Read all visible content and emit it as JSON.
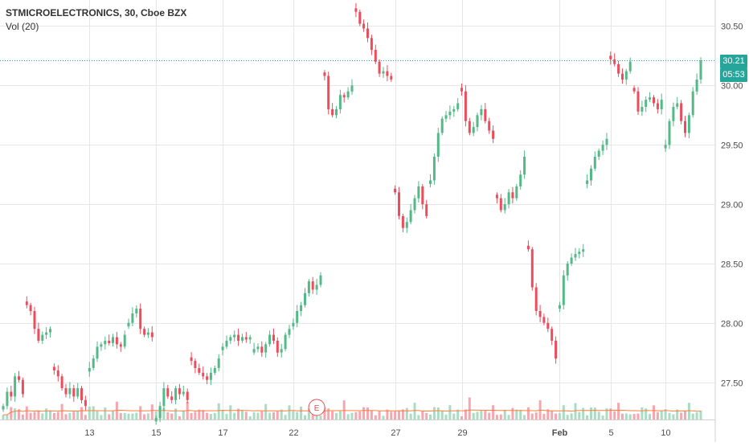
{
  "legend": {
    "title": "STMICROELECTRONICS, 30, Cboe BZX",
    "volume": "Vol (20)"
  },
  "colors": {
    "up": "#53b987",
    "down": "#eb4d5c",
    "up_volume": "#a9dcc3",
    "down_volume": "#f5a6ae",
    "volume_ma": "#ff7f3f",
    "grid": "#e6e6e6",
    "last_price_line": "#26a69a",
    "countdown_bg": "#26a69a",
    "earnings": "#e04f4f"
  },
  "price_axis": {
    "ticks": [
      "30.50",
      "30.00",
      "29.50",
      "29.00",
      "28.50",
      "28.00",
      "27.50"
    ],
    "range": [
      27.2,
      30.72
    ]
  },
  "time_axis": {
    "ticks": [
      "13",
      "15",
      "17",
      "22",
      "27",
      "29",
      "Feb",
      "5",
      "10"
    ]
  },
  "last_price": {
    "value": "30.21",
    "countdown": "05:53"
  },
  "earnings_marker": {
    "label": "E"
  },
  "chart_data": {
    "type": "candlestick",
    "symbol": "STMICROELECTRONICS",
    "interval": "30",
    "exchange": "Cboe BZX",
    "ylim": [
      27.2,
      30.72
    ],
    "sessions": [
      {
        "label": "",
        "path": [
          27.3,
          27.42,
          27.38,
          27.55,
          27.52,
          27.4
        ]
      },
      {
        "label": "",
        "path": [
          28.15,
          28.1,
          27.95,
          27.85,
          27.9,
          27.92,
          27.95
        ]
      },
      {
        "label": "",
        "path": [
          27.6,
          27.55,
          27.45,
          27.4,
          27.45,
          27.38,
          27.45,
          27.35,
          27.3
        ]
      },
      {
        "label": "13",
        "path": [
          27.62,
          27.7,
          27.8,
          27.82,
          27.85,
          27.83,
          27.88,
          27.82,
          27.8,
          27.9
        ]
      },
      {
        "label": "",
        "path": [
          28.0,
          28.08,
          28.12,
          27.95,
          27.9,
          27.92,
          27.88
        ]
      },
      {
        "label": "15",
        "path": [
          27.2,
          27.3,
          27.45,
          27.38,
          27.35,
          27.45,
          27.4,
          27.42,
          27.35
        ]
      },
      {
        "label": "",
        "path": [
          27.68,
          27.62,
          27.58,
          27.55,
          27.52,
          27.58,
          27.62,
          27.7
        ]
      },
      {
        "label": "17",
        "path": [
          27.8,
          27.85,
          27.88,
          27.9,
          27.85,
          27.88,
          27.86,
          27.88
        ]
      },
      {
        "label": "",
        "path": [
          27.78,
          27.8,
          27.75,
          27.82,
          27.9,
          27.85,
          27.75,
          27.78,
          27.9,
          27.95
        ]
      },
      {
        "label": "22",
        "path": [
          28.0,
          28.1,
          28.15,
          28.25,
          28.35,
          28.28,
          28.32,
          28.4
        ]
      },
      {
        "label": "",
        "path": [
          30.08,
          29.8,
          29.75,
          29.8,
          29.92,
          29.9,
          29.95,
          30.0
        ]
      },
      {
        "label": "",
        "path": [
          30.62,
          30.52,
          30.48,
          30.4,
          30.3,
          30.2,
          30.1,
          30.12,
          30.08,
          30.05
        ]
      },
      {
        "label": "27",
        "path": [
          29.1,
          28.9,
          28.8,
          28.85,
          28.95,
          29.05,
          29.15,
          29.0,
          28.9
        ]
      },
      {
        "label": "",
        "path": [
          29.2,
          29.4,
          29.6,
          29.72,
          29.75,
          29.78,
          29.8,
          29.85
        ]
      },
      {
        "label": "29",
        "path": [
          29.95,
          29.7,
          29.6,
          29.65,
          29.75,
          29.8,
          29.7,
          29.62,
          29.55
        ]
      },
      {
        "label": "",
        "path": [
          29.05,
          28.95,
          29.0,
          29.1,
          29.05,
          29.15,
          29.25,
          29.4
        ]
      },
      {
        "label": "",
        "path": [
          28.62,
          28.3,
          28.1,
          28.05,
          28.0,
          27.95,
          27.85,
          27.7
        ]
      },
      {
        "label": "Feb",
        "path": [
          28.15,
          28.4,
          28.5,
          28.55,
          28.58,
          28.6,
          28.62
        ]
      },
      {
        "label": "",
        "path": [
          29.2,
          29.3,
          29.4,
          29.45,
          29.5,
          29.55
        ]
      },
      {
        "label": "5",
        "path": [
          30.22,
          30.18,
          30.1,
          30.05,
          30.12,
          30.2
        ]
      },
      {
        "label": "",
        "path": [
          29.95,
          29.78,
          29.82,
          29.88,
          29.9,
          29.85,
          29.8,
          29.88
        ]
      },
      {
        "label": "10",
        "path": [
          29.5,
          29.7,
          29.82,
          29.85,
          29.7,
          29.6,
          29.75,
          29.95,
          30.05,
          30.21
        ]
      }
    ],
    "volume_relative_to_avg": [
      0.7,
      0.5,
      0.9,
      1.2,
      0.8,
      0.6,
      1.1,
      0.9,
      0.7,
      1.4,
      0.6,
      0.8,
      1.0,
      0.5,
      0.9,
      1.3,
      0.7,
      0.6,
      1.2,
      0.8,
      0.9,
      0.5,
      1.0,
      1.6,
      0.7,
      0.6,
      1.1,
      0.8,
      0.9,
      1.3,
      0.7,
      0.5
    ]
  }
}
